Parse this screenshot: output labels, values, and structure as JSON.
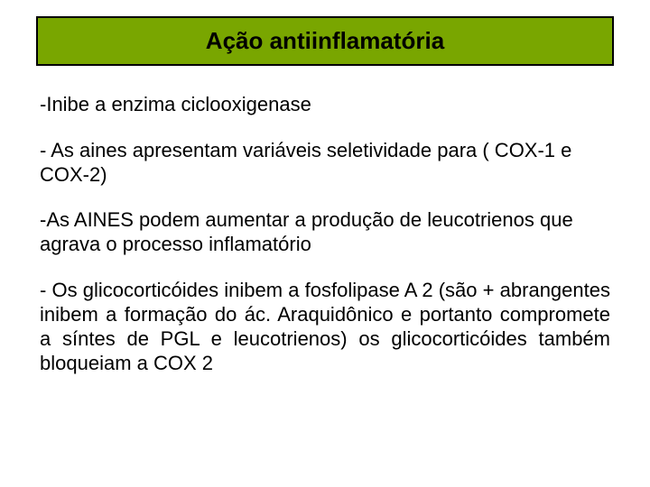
{
  "slide": {
    "title": "Ação antiinflamatória",
    "title_bg_color": "#79a600",
    "title_border_color": "#000000",
    "title_fontsize": 26,
    "body_fontsize": 22,
    "text_color": "#000000",
    "background_color": "#ffffff",
    "paragraphs": [
      "-Inibe a enzima ciclooxigenase",
      "- As aines apresentam variáveis seletividade para ( COX-1 e COX-2)",
      "-As AINES podem aumentar a produção de leucotrienos que agrava o processo inflamatório",
      "- Os glicocorticóides inibem a fosfolipase A 2 (são + abrangentes inibem a formação do ác. Araquidônico e portanto compromete a síntes de PGL e leucotrienos) os glicocorticóides também bloqueiam a COX 2"
    ]
  }
}
